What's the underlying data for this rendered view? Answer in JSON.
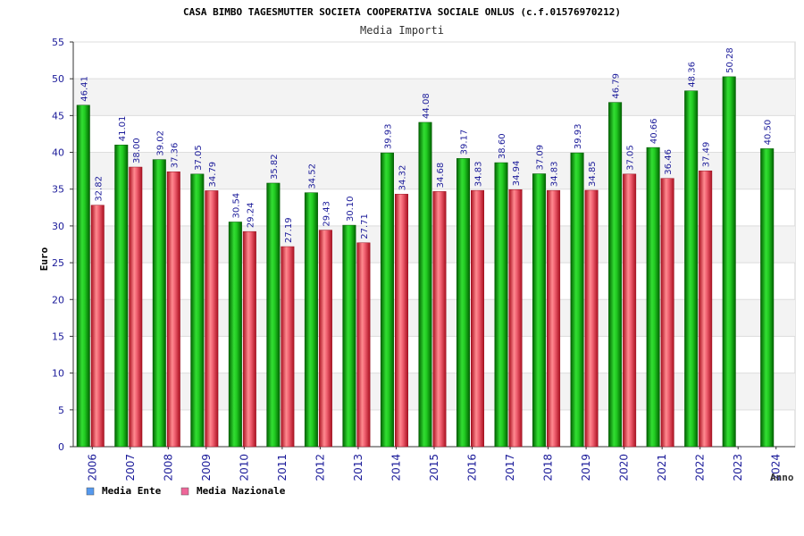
{
  "chart_data": {
    "type": "bar",
    "title": "CASA BIMBO TAGESMUTTER SOCIETA COOPERATIVA SOCIALE ONLUS (c.f.01576970212)",
    "subtitle": "Media Importi",
    "ylabel": "Euro",
    "xlabel": "Anno",
    "ylim": [
      0,
      55
    ],
    "yticks": [
      0,
      5,
      10,
      15,
      20,
      25,
      30,
      35,
      40,
      45,
      50,
      55
    ],
    "grid": true,
    "legend_position": "bottom-left",
    "categories": [
      "2006",
      "2007",
      "2008",
      "2009",
      "2010",
      "2011",
      "2012",
      "2013",
      "2014",
      "2015",
      "2016",
      "2017",
      "2018",
      "2019",
      "2020",
      "2021",
      "2022",
      "2023",
      "2024"
    ],
    "series": [
      {
        "name": "Media Ente",
        "color": "#00a000",
        "legend_color": "#5599ee",
        "values": [
          46.41,
          41.01,
          39.02,
          37.05,
          30.54,
          35.82,
          34.52,
          30.1,
          39.93,
          44.08,
          39.17,
          38.6,
          37.09,
          39.93,
          46.79,
          40.66,
          48.36,
          50.28,
          40.5
        ],
        "labels": [
          "46.41",
          "41.01",
          "39.02",
          "37.05",
          "30.54",
          "35.82",
          "34.52",
          "30.10",
          "39.93",
          "44.08",
          "39.17",
          "38.60",
          "37.09",
          "39.93",
          "46.79",
          "40.66",
          "48.36",
          "50.28",
          "40.50"
        ]
      },
      {
        "name": "Media Nazionale",
        "color": "#e0303a",
        "legend_color": "#ee6699",
        "values": [
          32.82,
          38.0,
          37.36,
          34.79,
          29.24,
          27.19,
          29.43,
          27.71,
          34.32,
          34.68,
          34.83,
          34.94,
          34.83,
          34.85,
          37.05,
          36.46,
          37.49,
          null,
          null
        ],
        "labels": [
          "32.82",
          "38.00",
          "37.36",
          "34.79",
          "29.24",
          "27.19",
          "29.43",
          "27.71",
          "34.32",
          "34.68",
          "34.83",
          "34.94",
          "34.83",
          "34.85",
          "37.05",
          "36.46",
          "37.49",
          null,
          null
        ]
      }
    ]
  }
}
